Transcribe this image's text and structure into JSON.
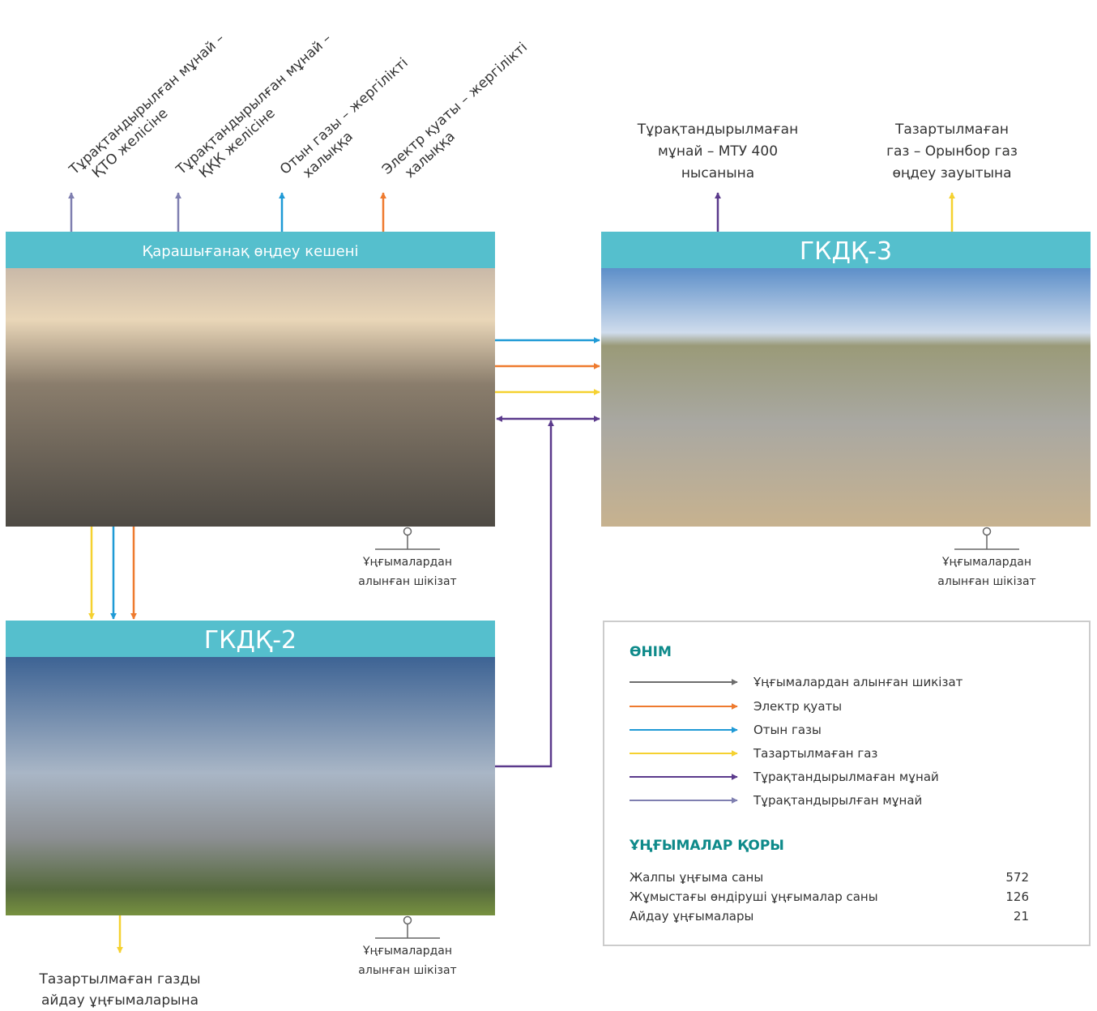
{
  "kpc": {
    "title": "Қарашығанақ өңдеу кешені",
    "outputs": [
      [
        "Тұрақтандырылған мұнай –",
        "ҚТО желісіне"
      ],
      [
        "Тұрақтандырылған мұнай –",
        "ҚҚК желісіне"
      ],
      [
        "Отын газы – жергілікті",
        "халыққа"
      ],
      [
        "Электр қуаты – жергілікті",
        "халыққа"
      ]
    ],
    "source": [
      "Ұңғымалардан",
      "алынған шікізат"
    ]
  },
  "gkdk3": {
    "title": "ГКДҚ-3",
    "outputs": [
      [
        "Тұрақтандырылмаған",
        "мұнай – МТУ 400",
        "нысанына"
      ],
      [
        "Тазартылмаған",
        "газ – Орынбор газ",
        "өңдеу зауытына"
      ]
    ],
    "source": [
      "Ұңғымалардан",
      "алынған шікізат"
    ]
  },
  "gkdk2": {
    "title": "ГКДҚ-2",
    "outputs": [
      [
        "Тазартылмаған газды",
        "айдау ұңғымаларына"
      ]
    ],
    "source": [
      "Ұңғымалардан",
      "алынған шікізат"
    ]
  },
  "legend": {
    "title": "ӨНІМ",
    "items": [
      "Ұңғымалардан алынған шикізат",
      "Электр қуаты",
      "Отын газы",
      "Тазартылмаған газ",
      "Тұрақтандырылмаған мұнай",
      "Тұрақтандырылған мұнай"
    ]
  },
  "wells": {
    "title": "ҰҢҒЫМАЛАР ҚОРЫ",
    "rows": [
      [
        "Жалпы ұңғыма саны",
        572
      ],
      [
        "Жұмыстағы өндіруші ұңғымалар саны",
        126
      ],
      [
        "Айдау ұңғымалары",
        21
      ]
    ]
  }
}
